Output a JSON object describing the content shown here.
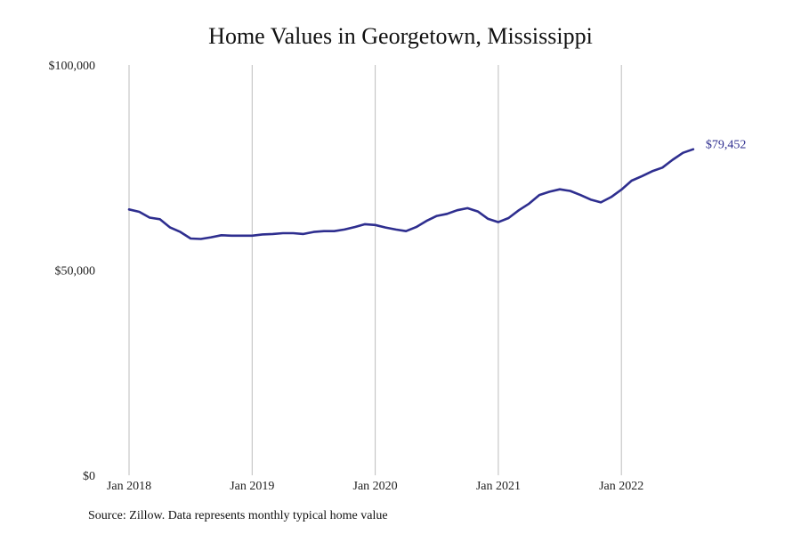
{
  "chart_data": {
    "type": "line",
    "title": "Home Values in Georgetown, Mississippi",
    "xlabel": "",
    "ylabel": "",
    "ylim": [
      0,
      100000
    ],
    "y_ticks": [
      {
        "value": 0,
        "label": "$0"
      },
      {
        "value": 50000,
        "label": "$50,000"
      },
      {
        "value": 100000,
        "label": "$100,000"
      }
    ],
    "x_ticks": [
      "Jan 2018",
      "Jan 2019",
      "Jan 2020",
      "Jan 2021",
      "Jan 2022"
    ],
    "grid": "vertical",
    "line_color": "#2e2e8f",
    "end_label": "$79,452",
    "series": [
      {
        "x": [
          "2018-01",
          "2018-02",
          "2018-03",
          "2018-04",
          "2018-05",
          "2018-06",
          "2018-07",
          "2018-08",
          "2018-09",
          "2018-10",
          "2018-11",
          "2018-12",
          "2019-01",
          "2019-02",
          "2019-03",
          "2019-04",
          "2019-05",
          "2019-06",
          "2019-07",
          "2019-08",
          "2019-09",
          "2019-10",
          "2019-11",
          "2019-12",
          "2020-01",
          "2020-02",
          "2020-03",
          "2020-04",
          "2020-05",
          "2020-06",
          "2020-07",
          "2020-08",
          "2020-09",
          "2020-10",
          "2020-11",
          "2020-12",
          "2021-01",
          "2021-02",
          "2021-03",
          "2021-04",
          "2021-05",
          "2021-06",
          "2021-07",
          "2021-08",
          "2021-09",
          "2021-10",
          "2021-11",
          "2021-12",
          "2022-01",
          "2022-02",
          "2022-03",
          "2022-04",
          "2022-05",
          "2022-06",
          "2022-07",
          "2022-08"
        ],
        "values": [
          64800,
          64200,
          62800,
          62400,
          60400,
          59300,
          57700,
          57600,
          58000,
          58500,
          58400,
          58400,
          58400,
          58700,
          58800,
          59000,
          59000,
          58800,
          59300,
          59500,
          59500,
          59900,
          60500,
          61200,
          61000,
          60400,
          59900,
          59500,
          60500,
          62000,
          63200,
          63700,
          64600,
          65100,
          64300,
          62500,
          61700,
          62700,
          64600,
          66200,
          68300,
          69100,
          69700,
          69300,
          68300,
          67200,
          66500,
          67800,
          69600,
          71800,
          72900,
          74100,
          75000,
          76900,
          78600,
          79452
        ]
      }
    ]
  },
  "footnote": "Source: Zillow. Data represents monthly typical home value"
}
